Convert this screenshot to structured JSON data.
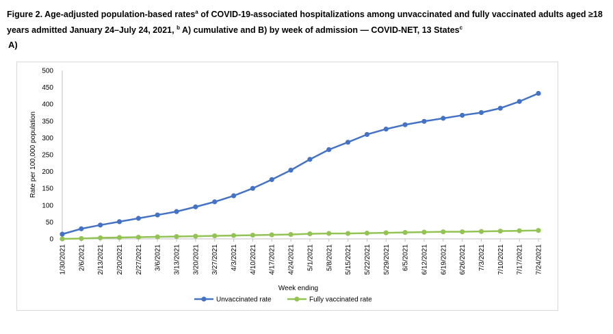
{
  "figure": {
    "title_main": "Figure 2. Age-adjusted population-based rates",
    "title_sup_a": "a",
    "title_part2": " of COVID-19-associated hospitalizations among unvaccinated and fully vaccinated adults aged ≥18 years admitted January 24–July 24, 2021, ",
    "title_sup_b": "b",
    "title_part3": " A) cumulative and B) by week of admission — COVID-NET, 13 States",
    "title_sup_c": "c",
    "panel_label": "A)"
  },
  "chart_data": {
    "type": "line",
    "xlabel": "Week ending",
    "ylabel": "Rate per 100,000 population",
    "ylim": [
      0,
      500
    ],
    "yticks": [
      0,
      50,
      100,
      150,
      200,
      250,
      300,
      350,
      400,
      450,
      500
    ],
    "grid": false,
    "legend_position": "bottom",
    "categories": [
      "1/30/2021",
      "2/6/2021",
      "2/13/2021",
      "2/20/2021",
      "2/27/2021",
      "3/6/2021",
      "3/13/2021",
      "3/20/2021",
      "3/27/2021",
      "4/3/2021",
      "4/10/2021",
      "4/17/2021",
      "4/24/2021",
      "5/1/2021",
      "5/8/2021",
      "5/15/2021",
      "5/22/2021",
      "5/29/2021",
      "6/5/2021",
      "6/12/2021",
      "6/19/2021",
      "6/26/2021",
      "7/3/2021",
      "7/10/2021",
      "7/17/2021",
      "7/24/2021"
    ],
    "series": [
      {
        "name": "Unvaccinated rate",
        "color": "#4472c4",
        "values": [
          14,
          30,
          41,
          51,
          61,
          71,
          81,
          95,
          110,
          128,
          150,
          176,
          204,
          236,
          265,
          287,
          310,
          326,
          339,
          349,
          358,
          367,
          375,
          388,
          408,
          432
        ]
      },
      {
        "name": "Fully vaccinated rate",
        "color": "#92c353",
        "values": [
          0,
          1,
          3,
          4,
          5,
          6,
          7,
          8,
          9,
          10,
          11,
          12,
          13,
          15,
          16,
          16,
          17,
          18,
          19,
          20,
          21,
          21,
          22,
          23,
          24,
          25
        ]
      }
    ]
  }
}
